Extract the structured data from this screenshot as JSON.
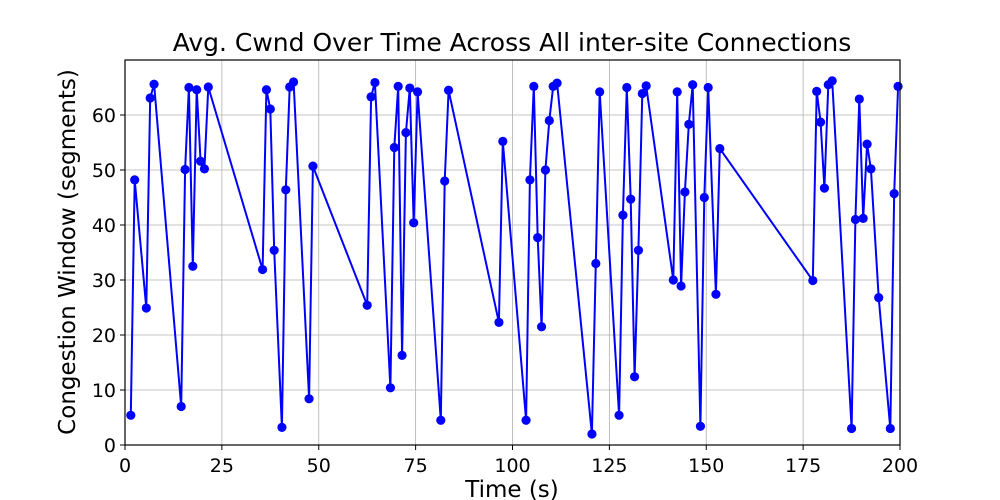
{
  "chart_data": {
    "type": "line",
    "title": "Avg. Cwnd Over Time Across All inter-site Connections",
    "xlabel": "Time (s)",
    "ylabel": "Congestion Window (segments)",
    "xlim": [
      0,
      200
    ],
    "ylim": [
      0,
      70
    ],
    "xticks": [
      0,
      25,
      50,
      75,
      100,
      125,
      150,
      175,
      200
    ],
    "yticks": [
      0,
      10,
      20,
      30,
      40,
      50,
      60
    ],
    "grid": true,
    "line_color": "#0000ff",
    "marker": "circle",
    "series": [
      {
        "x": [
          1.5,
          2.5,
          5.5,
          6.5,
          7.5,
          14.5,
          15.5,
          16.5,
          17.5,
          18.5,
          19.5,
          20.5,
          21.5,
          35.5,
          36.5,
          37.5,
          38.5,
          40.5,
          41.5,
          42.5,
          43.5,
          47.5,
          48.5,
          62.5,
          63.5,
          64.5,
          68.5,
          69.5,
          70.5,
          71.5,
          72.5,
          73.5,
          74.5,
          75.5,
          81.5,
          82.5,
          83.5,
          96.5,
          97.5,
          103.5,
          104.5,
          105.5,
          106.5,
          107.5,
          108.5,
          109.5,
          110.5,
          111.5,
          120.5,
          121.5,
          122.5,
          127.5,
          128.5,
          129.5,
          130.5,
          131.5,
          132.5,
          133.5,
          134.5,
          141.5,
          142.5,
          143.5,
          144.5,
          145.5,
          146.5,
          148.5,
          149.5,
          150.5,
          152.5,
          153.5,
          177.5,
          178.5,
          179.5,
          180.5,
          181.5,
          182.5,
          187.5,
          188.5,
          189.5,
          190.5,
          191.5,
          192.5,
          194.5,
          197.5,
          198.5,
          199.5
        ],
        "y": [
          5.4,
          48.2,
          24.9,
          63.1,
          65.6,
          7.0,
          50.1,
          65.0,
          32.5,
          64.6,
          51.6,
          50.2,
          65.1,
          31.9,
          64.6,
          61.1,
          35.4,
          3.2,
          46.4,
          65.1,
          66.0,
          8.4,
          50.7,
          25.4,
          63.3,
          65.9,
          10.4,
          54.1,
          65.2,
          16.3,
          56.8,
          64.9,
          40.4,
          64.2,
          4.5,
          48.0,
          64.5,
          22.3,
          55.2,
          4.5,
          48.2,
          65.2,
          37.7,
          21.5,
          50.0,
          59.0,
          65.2,
          65.8,
          2.0,
          33.0,
          64.2,
          5.4,
          41.8,
          65.0,
          44.7,
          12.4,
          35.4,
          63.9,
          65.3,
          30.0,
          64.2,
          28.9,
          46.0,
          58.3,
          65.5,
          3.4,
          45.0,
          65.0,
          27.4,
          53.9,
          29.9,
          64.3,
          58.7,
          46.7,
          65.5,
          66.2,
          3.0,
          41.0,
          62.9,
          41.2,
          54.7,
          50.2,
          26.8,
          3.0,
          45.7,
          65.2
        ]
      }
    ]
  }
}
